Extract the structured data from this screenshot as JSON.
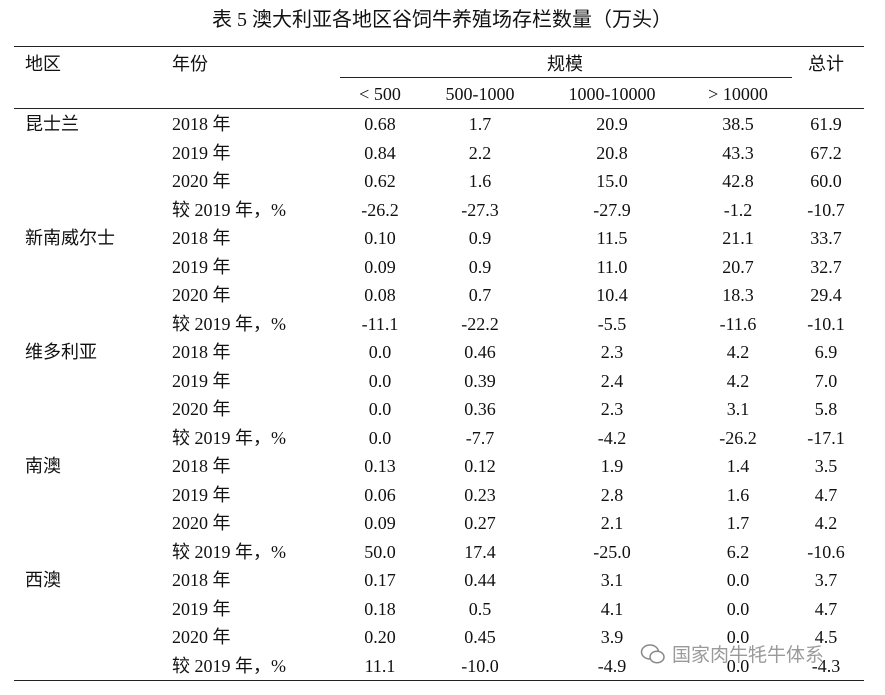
{
  "title": "表 5 澳大利亚各地区谷饲牛养殖场存栏数量（万头）",
  "header": {
    "region": "地区",
    "year": "年份",
    "scale": "规模",
    "total": "总计",
    "scale_columns": [
      "< 500",
      "500-1000",
      "1000-10000",
      "> 10000"
    ]
  },
  "regions": [
    {
      "name": "昆士兰",
      "rows": [
        [
          "2018 年",
          "0.68",
          "1.7",
          "20.9",
          "38.5",
          "61.9"
        ],
        [
          "2019 年",
          "0.84",
          "2.2",
          "20.8",
          "43.3",
          "67.2"
        ],
        [
          "2020 年",
          "0.62",
          "1.6",
          "15.0",
          "42.8",
          "60.0"
        ],
        [
          "较 2019 年，%",
          "-26.2",
          "-27.3",
          "-27.9",
          "-1.2",
          "-10.7"
        ]
      ]
    },
    {
      "name": "新南威尔士",
      "rows": [
        [
          "2018 年",
          "0.10",
          "0.9",
          "11.5",
          "21.1",
          "33.7"
        ],
        [
          "2019 年",
          "0.09",
          "0.9",
          "11.0",
          "20.7",
          "32.7"
        ],
        [
          "2020 年",
          "0.08",
          "0.7",
          "10.4",
          "18.3",
          "29.4"
        ],
        [
          "较 2019 年，%",
          "-11.1",
          "-22.2",
          "-5.5",
          "-11.6",
          "-10.1"
        ]
      ]
    },
    {
      "name": "维多利亚",
      "rows": [
        [
          "2018 年",
          "0.0",
          "0.46",
          "2.3",
          "4.2",
          "6.9"
        ],
        [
          "2019 年",
          "0.0",
          "0.39",
          "2.4",
          "4.2",
          "7.0"
        ],
        [
          "2020 年",
          "0.0",
          "0.36",
          "2.3",
          "3.1",
          "5.8"
        ],
        [
          "较 2019 年，%",
          "0.0",
          "-7.7",
          "-4.2",
          "-26.2",
          "-17.1"
        ]
      ]
    },
    {
      "name": "南澳",
      "rows": [
        [
          "2018 年",
          "0.13",
          "0.12",
          "1.9",
          "1.4",
          "3.5"
        ],
        [
          "2019 年",
          "0.06",
          "0.23",
          "2.8",
          "1.6",
          "4.7"
        ],
        [
          "2020 年",
          "0.09",
          "0.27",
          "2.1",
          "1.7",
          "4.2"
        ],
        [
          "较 2019 年，%",
          "50.0",
          "17.4",
          "-25.0",
          "6.2",
          "-10.6"
        ]
      ]
    },
    {
      "name": "西澳",
      "rows": [
        [
          "2018 年",
          "0.17",
          "0.44",
          "3.1",
          "0.0",
          "3.7"
        ],
        [
          "2019 年",
          "0.18",
          "0.5",
          "4.1",
          "0.0",
          "4.7"
        ],
        [
          "2020 年",
          "0.20",
          "0.45",
          "3.9",
          "0.0",
          "4.5"
        ],
        [
          "较 2019 年，%",
          "11.1",
          "-10.0",
          "-4.9",
          "0.0",
          "-4.3"
        ]
      ]
    }
  ],
  "watermark": "国家肉牛牦牛体系"
}
